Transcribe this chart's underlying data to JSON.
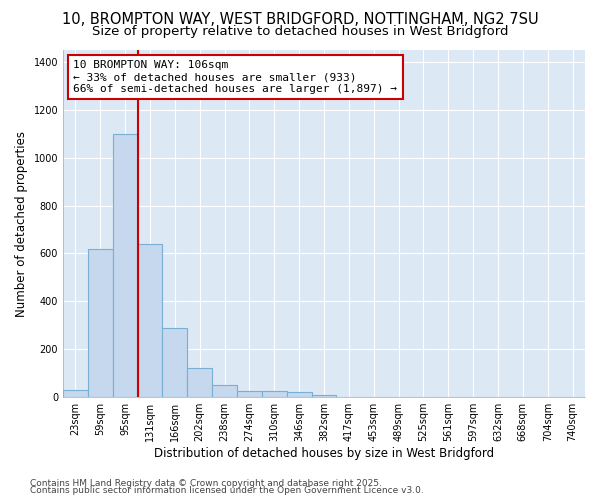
{
  "title_line1": "10, BROMPTON WAY, WEST BRIDGFORD, NOTTINGHAM, NG2 7SU",
  "title_line2": "Size of property relative to detached houses in West Bridgford",
  "xlabel": "Distribution of detached houses by size in West Bridgford",
  "ylabel": "Number of detached properties",
  "bin_labels": [
    "23sqm",
    "59sqm",
    "95sqm",
    "131sqm",
    "166sqm",
    "202sqm",
    "238sqm",
    "274sqm",
    "310sqm",
    "346sqm",
    "382sqm",
    "417sqm",
    "453sqm",
    "489sqm",
    "525sqm",
    "561sqm",
    "597sqm",
    "632sqm",
    "668sqm",
    "704sqm",
    "740sqm"
  ],
  "bar_values": [
    30,
    620,
    1100,
    640,
    290,
    120,
    50,
    25,
    25,
    20,
    10,
    0,
    0,
    0,
    0,
    0,
    0,
    0,
    0,
    0,
    0
  ],
  "bar_color": "#c5d8ee",
  "bar_edge_color": "#7aafd4",
  "property_line_bin_index": 2,
  "property_line_color": "#cc0000",
  "annotation_text": "10 BROMPTON WAY: 106sqm\n← 33% of detached houses are smaller (933)\n66% of semi-detached houses are larger (1,897) →",
  "annotation_box_color": "#ffffff",
  "annotation_box_edge_color": "#cc0000",
  "ylim": [
    0,
    1450
  ],
  "yticks": [
    0,
    200,
    400,
    600,
    800,
    1000,
    1200,
    1400
  ],
  "plot_background_color": "#dce9f5",
  "fig_background_color": "#ffffff",
  "footer_line1": "Contains HM Land Registry data © Crown copyright and database right 2025.",
  "footer_line2": "Contains public sector information licensed under the Open Government Licence v3.0.",
  "title_fontsize": 10.5,
  "subtitle_fontsize": 9.5,
  "tick_fontsize": 7,
  "label_fontsize": 8.5,
  "footer_fontsize": 6.5
}
